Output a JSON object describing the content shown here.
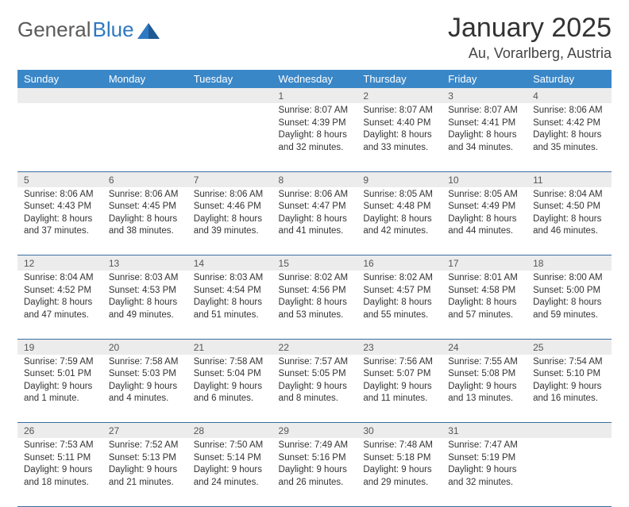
{
  "brand": {
    "name_a": "General",
    "name_b": "Blue",
    "icon_color": "#2f79c2"
  },
  "title": "January 2025",
  "location": "Au, Vorarlberg, Austria",
  "colors": {
    "header_bg": "#3a87c8",
    "header_text": "#ffffff",
    "daynum_bg": "#ececec",
    "row_border": "#3a6fa0",
    "text": "#333333",
    "logo_grey": "#5a5a5a",
    "logo_blue": "#2f79c2"
  },
  "weekdays": [
    "Sunday",
    "Monday",
    "Tuesday",
    "Wednesday",
    "Thursday",
    "Friday",
    "Saturday"
  ],
  "weeks": [
    [
      null,
      null,
      null,
      {
        "n": "1",
        "sunrise": "8:07 AM",
        "sunset": "4:39 PM",
        "daylight": "8 hours and 32 minutes."
      },
      {
        "n": "2",
        "sunrise": "8:07 AM",
        "sunset": "4:40 PM",
        "daylight": "8 hours and 33 minutes."
      },
      {
        "n": "3",
        "sunrise": "8:07 AM",
        "sunset": "4:41 PM",
        "daylight": "8 hours and 34 minutes."
      },
      {
        "n": "4",
        "sunrise": "8:06 AM",
        "sunset": "4:42 PM",
        "daylight": "8 hours and 35 minutes."
      }
    ],
    [
      {
        "n": "5",
        "sunrise": "8:06 AM",
        "sunset": "4:43 PM",
        "daylight": "8 hours and 37 minutes."
      },
      {
        "n": "6",
        "sunrise": "8:06 AM",
        "sunset": "4:45 PM",
        "daylight": "8 hours and 38 minutes."
      },
      {
        "n": "7",
        "sunrise": "8:06 AM",
        "sunset": "4:46 PM",
        "daylight": "8 hours and 39 minutes."
      },
      {
        "n": "8",
        "sunrise": "8:06 AM",
        "sunset": "4:47 PM",
        "daylight": "8 hours and 41 minutes."
      },
      {
        "n": "9",
        "sunrise": "8:05 AM",
        "sunset": "4:48 PM",
        "daylight": "8 hours and 42 minutes."
      },
      {
        "n": "10",
        "sunrise": "8:05 AM",
        "sunset": "4:49 PM",
        "daylight": "8 hours and 44 minutes."
      },
      {
        "n": "11",
        "sunrise": "8:04 AM",
        "sunset": "4:50 PM",
        "daylight": "8 hours and 46 minutes."
      }
    ],
    [
      {
        "n": "12",
        "sunrise": "8:04 AM",
        "sunset": "4:52 PM",
        "daylight": "8 hours and 47 minutes."
      },
      {
        "n": "13",
        "sunrise": "8:03 AM",
        "sunset": "4:53 PM",
        "daylight": "8 hours and 49 minutes."
      },
      {
        "n": "14",
        "sunrise": "8:03 AM",
        "sunset": "4:54 PM",
        "daylight": "8 hours and 51 minutes."
      },
      {
        "n": "15",
        "sunrise": "8:02 AM",
        "sunset": "4:56 PM",
        "daylight": "8 hours and 53 minutes."
      },
      {
        "n": "16",
        "sunrise": "8:02 AM",
        "sunset": "4:57 PM",
        "daylight": "8 hours and 55 minutes."
      },
      {
        "n": "17",
        "sunrise": "8:01 AM",
        "sunset": "4:58 PM",
        "daylight": "8 hours and 57 minutes."
      },
      {
        "n": "18",
        "sunrise": "8:00 AM",
        "sunset": "5:00 PM",
        "daylight": "8 hours and 59 minutes."
      }
    ],
    [
      {
        "n": "19",
        "sunrise": "7:59 AM",
        "sunset": "5:01 PM",
        "daylight": "9 hours and 1 minute."
      },
      {
        "n": "20",
        "sunrise": "7:58 AM",
        "sunset": "5:03 PM",
        "daylight": "9 hours and 4 minutes."
      },
      {
        "n": "21",
        "sunrise": "7:58 AM",
        "sunset": "5:04 PM",
        "daylight": "9 hours and 6 minutes."
      },
      {
        "n": "22",
        "sunrise": "7:57 AM",
        "sunset": "5:05 PM",
        "daylight": "9 hours and 8 minutes."
      },
      {
        "n": "23",
        "sunrise": "7:56 AM",
        "sunset": "5:07 PM",
        "daylight": "9 hours and 11 minutes."
      },
      {
        "n": "24",
        "sunrise": "7:55 AM",
        "sunset": "5:08 PM",
        "daylight": "9 hours and 13 minutes."
      },
      {
        "n": "25",
        "sunrise": "7:54 AM",
        "sunset": "5:10 PM",
        "daylight": "9 hours and 16 minutes."
      }
    ],
    [
      {
        "n": "26",
        "sunrise": "7:53 AM",
        "sunset": "5:11 PM",
        "daylight": "9 hours and 18 minutes."
      },
      {
        "n": "27",
        "sunrise": "7:52 AM",
        "sunset": "5:13 PM",
        "daylight": "9 hours and 21 minutes."
      },
      {
        "n": "28",
        "sunrise": "7:50 AM",
        "sunset": "5:14 PM",
        "daylight": "9 hours and 24 minutes."
      },
      {
        "n": "29",
        "sunrise": "7:49 AM",
        "sunset": "5:16 PM",
        "daylight": "9 hours and 26 minutes."
      },
      {
        "n": "30",
        "sunrise": "7:48 AM",
        "sunset": "5:18 PM",
        "daylight": "9 hours and 29 minutes."
      },
      {
        "n": "31",
        "sunrise": "7:47 AM",
        "sunset": "5:19 PM",
        "daylight": "9 hours and 32 minutes."
      },
      null
    ]
  ],
  "labels": {
    "sunrise": "Sunrise:",
    "sunset": "Sunset:",
    "daylight": "Daylight:"
  }
}
